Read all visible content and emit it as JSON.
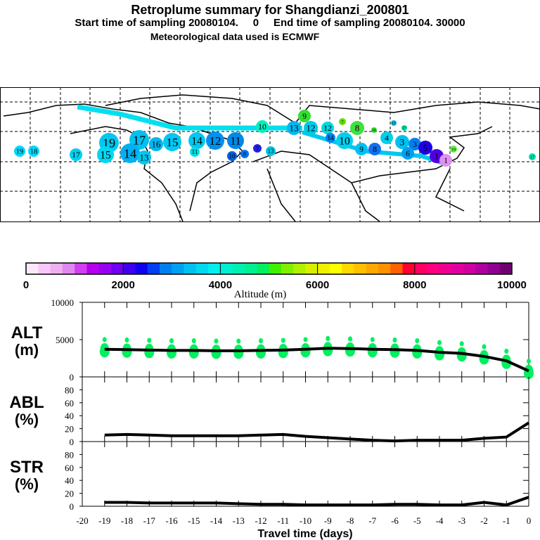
{
  "header": {
    "title": "Retroplume summary for Shangdianzi_200801",
    "subtitle": "Start time of sampling 20080104.     0     End time of sampling 20080104. 30000",
    "met_line": "Meteorological data used is ECMWF"
  },
  "map": {
    "points": [
      "19",
      "18",
      "17",
      "19",
      "15",
      "17",
      "16",
      "14",
      "13",
      "15",
      "14",
      "12",
      "11",
      "11",
      "10",
      "7",
      "8",
      "13",
      "10",
      "9",
      "13",
      "12",
      "12",
      "14",
      "7",
      "8",
      "10",
      "9",
      "8",
      "4",
      "3",
      "3",
      "6",
      "5",
      "1",
      "1",
      "19",
      "16",
      "17",
      "15",
      "17"
    ]
  },
  "colorbar": {
    "ticks": [
      "0",
      "2000",
      "4000",
      "6000",
      "8000",
      "10000"
    ],
    "label": "Altitude (m)",
    "colors": [
      "#fde8fb",
      "#f8c8f8",
      "#f0b0f0",
      "#e088f0",
      "#d040f0",
      "#b800f0",
      "#9800f0",
      "#7000f0",
      "#4000f0",
      "#1000f0",
      "#0040f0",
      "#0080f0",
      "#00a0f0",
      "#00c0f0",
      "#00d8f0",
      "#00f0f0",
      "#00f0d0",
      "#00f0b0",
      "#00f090",
      "#00f060",
      "#40f000",
      "#80f000",
      "#b0f000",
      "#d8f000",
      "#f0f000",
      "#ffff00",
      "#ffd800",
      "#ffc000",
      "#ffa800",
      "#ff9000",
      "#ff6000",
      "#ff0030",
      "#ff0060",
      "#ff0080",
      "#f00090",
      "#e000a0",
      "#d000a0",
      "#b000a0",
      "#900090",
      "#700070"
    ]
  },
  "chart_data": [
    {
      "type": "line",
      "panel": "ALT",
      "ylabel_top": "ALT",
      "ylabel_bottom": "(m)",
      "ylim": [
        0,
        10000
      ],
      "yticks": [
        "0",
        "5000",
        "10000"
      ],
      "x": [
        -19,
        -18,
        -17,
        -16,
        -15,
        -14,
        -13,
        -12,
        -11,
        -10,
        -9,
        -8,
        -7,
        -6,
        -5,
        -4,
        -3,
        -2,
        -1,
        0
      ],
      "mean": [
        3700,
        3650,
        3600,
        3550,
        3550,
        3500,
        3500,
        3550,
        3600,
        3700,
        3850,
        3800,
        3700,
        3650,
        3550,
        3300,
        3150,
        2750,
        2150,
        800
      ],
      "scatter_color": "#00f060"
    },
    {
      "type": "line",
      "panel": "ABL",
      "ylabel_top": "ABL",
      "ylabel_bottom": "(%)",
      "ylim": [
        0,
        100
      ],
      "yticks": [
        "0",
        "20",
        "40",
        "60",
        "80"
      ],
      "x": [
        -19,
        -18,
        -17,
        -16,
        -15,
        -14,
        -13,
        -12,
        -11,
        -10,
        -9,
        -8,
        -7,
        -6,
        -5,
        -4,
        -3,
        -2,
        -1,
        0
      ],
      "values": [
        10,
        11,
        10,
        9,
        9,
        9,
        9,
        10,
        11,
        8,
        6,
        4,
        2,
        1,
        2,
        2,
        2,
        5,
        7,
        29
      ]
    },
    {
      "type": "line",
      "panel": "STR",
      "ylabel_top": "STR",
      "ylabel_bottom": "(%)",
      "ylim": [
        0,
        100
      ],
      "yticks": [
        "0",
        "20",
        "40",
        "60",
        "80"
      ],
      "x": [
        -19,
        -18,
        -17,
        -16,
        -15,
        -14,
        -13,
        -12,
        -11,
        -10,
        -9,
        -8,
        -7,
        -6,
        -5,
        -4,
        -3,
        -2,
        -1,
        0
      ],
      "values": [
        6,
        6,
        5,
        5,
        5,
        5,
        4,
        3,
        3,
        2,
        2,
        2,
        2,
        3,
        3,
        2,
        2,
        6,
        2,
        14
      ]
    }
  ],
  "xaxis": {
    "ticks": [
      "-20",
      "-19",
      "-18",
      "-17",
      "-16",
      "-15",
      "-14",
      "-13",
      "-12",
      "-11",
      "-10",
      "-9",
      "-8",
      "-7",
      "-6",
      "-5",
      "-4",
      "-3",
      "-2",
      "-1",
      "0"
    ],
    "label": "Travel time (days)"
  }
}
